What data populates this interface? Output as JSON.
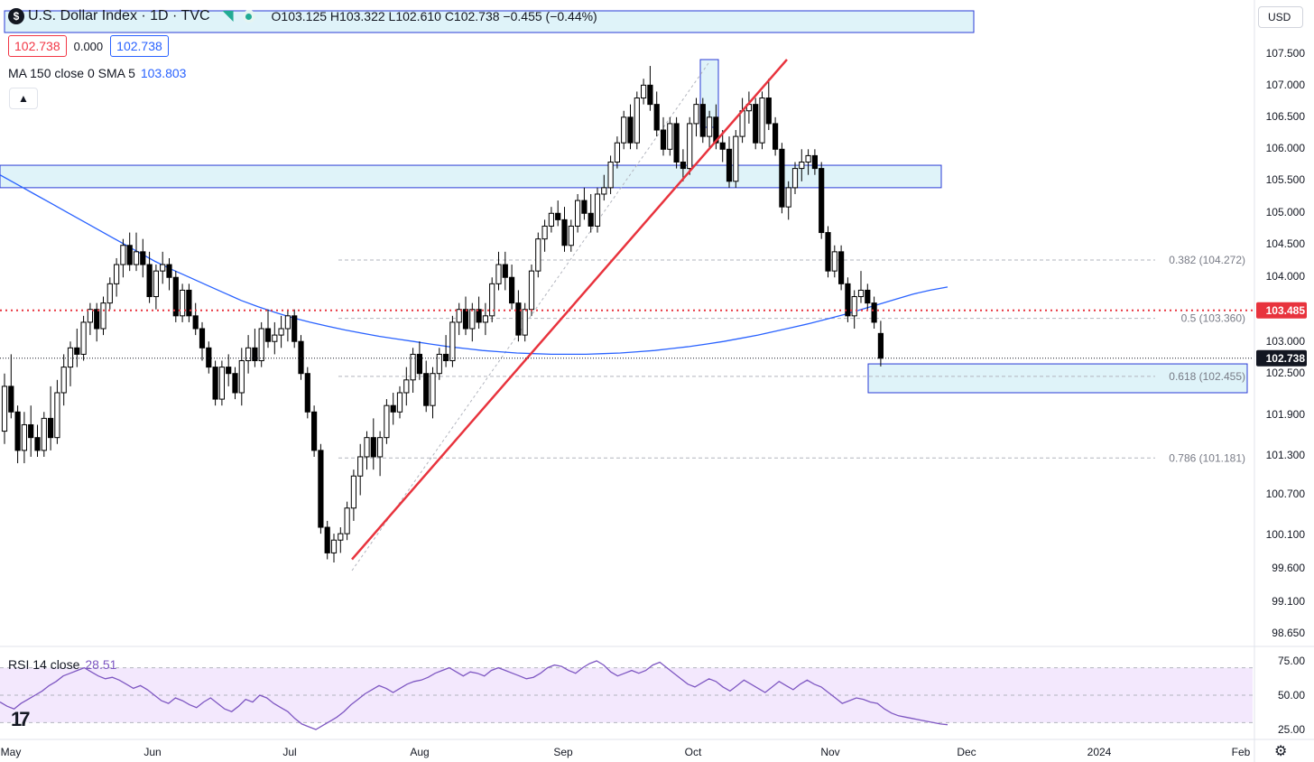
{
  "header": {
    "symbol_icon": "dollar-sign-icon",
    "title": "U.S. Dollar Index · 1D · TVC",
    "ohlc": "O103.125  H103.322  L102.610  C102.738  −0.455 (−0.44%)",
    "sell_price": "102.738",
    "spread": "0.000",
    "buy_price": "102.738",
    "ma_label": "MA 150 close 0 SMA 5",
    "ma_value": "103.803",
    "currency": "USD"
  },
  "rsi": {
    "label": "RSI 14 close",
    "value": "28.51"
  },
  "colors": {
    "up": "#ffffff",
    "down": "#000000",
    "trendline": "#e8333d",
    "ma": "#2962ff",
    "rsi": "#7e57c2",
    "zone": "#dff3f9",
    "zone_border": "#2a3bd6",
    "current_price_line": "#e8333d"
  },
  "chart_data": [
    {
      "type": "candlestick",
      "y_axis_ticks": [
        "107.500",
        "107.000",
        "106.500",
        "106.000",
        "105.500",
        "105.000",
        "104.500",
        "104.000",
        "103.000",
        "102.500",
        "101.900",
        "101.300",
        "100.700",
        "100.100",
        "99.600",
        "99.100",
        "98.650"
      ],
      "x_axis_ticks": [
        "May",
        "Jun",
        "Jul",
        "Aug",
        "Sep",
        "Oct",
        "Nov",
        "Dec",
        "2024",
        "Feb"
      ],
      "ylim": [
        98.5,
        107.8
      ],
      "last_price": "102.738",
      "marked_price": "103.485",
      "fib_levels": [
        {
          "label": "0.382 (104.272)",
          "value": 104.272
        },
        {
          "label": "0.5 (103.360)",
          "value": 103.36
        },
        {
          "label": "0.618 (102.455)",
          "value": 102.455
        },
        {
          "label": "0.786 (101.181)",
          "value": 101.181
        }
      ],
      "zones": [
        {
          "from": 105.4,
          "to": 105.75,
          "start": "May",
          "end": "Nov"
        },
        {
          "from": 102.2,
          "to": 102.65,
          "start": "Nov",
          "end": "Dec"
        }
      ],
      "trendline": {
        "start": {
          "date": "Jul 13",
          "value": 99.6
        },
        "end": {
          "date": "Oct 10",
          "value": 107.4
        }
      },
      "candles": [
        {
          "o": 101.6,
          "h": 102.5,
          "l": 101.4,
          "c": 102.3
        },
        {
          "o": 102.3,
          "h": 102.8,
          "l": 101.8,
          "c": 101.9
        },
        {
          "o": 101.9,
          "h": 102.0,
          "l": 101.1,
          "c": 101.3
        },
        {
          "o": 101.3,
          "h": 101.9,
          "l": 101.1,
          "c": 101.7
        },
        {
          "o": 101.7,
          "h": 102.0,
          "l": 101.2,
          "c": 101.5
        },
        {
          "o": 101.5,
          "h": 101.7,
          "l": 101.2,
          "c": 101.3
        },
        {
          "o": 101.3,
          "h": 101.9,
          "l": 101.2,
          "c": 101.8
        },
        {
          "o": 101.8,
          "h": 102.3,
          "l": 101.3,
          "c": 101.5
        },
        {
          "o": 101.5,
          "h": 102.4,
          "l": 101.4,
          "c": 102.2
        },
        {
          "o": 102.2,
          "h": 102.8,
          "l": 102.0,
          "c": 102.6
        },
        {
          "o": 102.6,
          "h": 103.0,
          "l": 102.3,
          "c": 102.9
        },
        {
          "o": 102.9,
          "h": 103.2,
          "l": 102.6,
          "c": 102.8
        },
        {
          "o": 102.8,
          "h": 103.4,
          "l": 102.7,
          "c": 103.3
        },
        {
          "o": 103.3,
          "h": 103.6,
          "l": 103.1,
          "c": 103.5
        },
        {
          "o": 103.5,
          "h": 103.6,
          "l": 103.0,
          "c": 103.2
        },
        {
          "o": 103.2,
          "h": 103.7,
          "l": 103.1,
          "c": 103.6
        },
        {
          "o": 103.6,
          "h": 104.0,
          "l": 103.5,
          "c": 103.9
        },
        {
          "o": 103.9,
          "h": 104.3,
          "l": 103.7,
          "c": 104.2
        },
        {
          "o": 104.2,
          "h": 104.6,
          "l": 104.0,
          "c": 104.5
        },
        {
          "o": 104.5,
          "h": 104.7,
          "l": 104.1,
          "c": 104.2
        },
        {
          "o": 104.2,
          "h": 104.7,
          "l": 104.1,
          "c": 104.4
        },
        {
          "o": 104.4,
          "h": 104.6,
          "l": 104.0,
          "c": 104.2
        },
        {
          "o": 104.2,
          "h": 104.4,
          "l": 103.6,
          "c": 103.7
        },
        {
          "o": 103.7,
          "h": 104.2,
          "l": 103.5,
          "c": 104.1
        },
        {
          "o": 104.1,
          "h": 104.4,
          "l": 103.9,
          "c": 104.2
        },
        {
          "o": 104.2,
          "h": 104.3,
          "l": 103.8,
          "c": 104.0
        },
        {
          "o": 104.0,
          "h": 104.1,
          "l": 103.3,
          "c": 103.4
        },
        {
          "o": 103.4,
          "h": 103.9,
          "l": 103.3,
          "c": 103.8
        },
        {
          "o": 103.8,
          "h": 103.9,
          "l": 103.3,
          "c": 103.4
        },
        {
          "o": 103.4,
          "h": 103.6,
          "l": 103.1,
          "c": 103.2
        },
        {
          "o": 103.2,
          "h": 103.3,
          "l": 102.7,
          "c": 102.9
        },
        {
          "o": 102.9,
          "h": 103.0,
          "l": 102.5,
          "c": 102.6
        },
        {
          "o": 102.6,
          "h": 102.7,
          "l": 102.0,
          "c": 102.1
        },
        {
          "o": 102.1,
          "h": 102.7,
          "l": 102.0,
          "c": 102.6
        },
        {
          "o": 102.6,
          "h": 102.8,
          "l": 102.3,
          "c": 102.5
        },
        {
          "o": 102.5,
          "h": 102.6,
          "l": 102.1,
          "c": 102.2
        },
        {
          "o": 102.2,
          "h": 102.9,
          "l": 102.0,
          "c": 102.7
        },
        {
          "o": 102.7,
          "h": 103.1,
          "l": 102.5,
          "c": 102.9
        },
        {
          "o": 102.9,
          "h": 103.2,
          "l": 102.6,
          "c": 102.7
        },
        {
          "o": 102.7,
          "h": 103.3,
          "l": 102.6,
          "c": 103.2
        },
        {
          "o": 103.2,
          "h": 103.5,
          "l": 102.9,
          "c": 103.0
        },
        {
          "o": 103.0,
          "h": 103.3,
          "l": 102.8,
          "c": 103.1
        },
        {
          "o": 103.1,
          "h": 103.4,
          "l": 102.9,
          "c": 103.2
        },
        {
          "o": 103.2,
          "h": 103.5,
          "l": 103.0,
          "c": 103.4
        },
        {
          "o": 103.4,
          "h": 103.5,
          "l": 102.9,
          "c": 103.0
        },
        {
          "o": 103.0,
          "h": 103.1,
          "l": 102.4,
          "c": 102.5
        },
        {
          "o": 102.5,
          "h": 102.6,
          "l": 101.8,
          "c": 101.9
        },
        {
          "o": 101.9,
          "h": 102.0,
          "l": 101.2,
          "c": 101.3
        },
        {
          "o": 101.3,
          "h": 101.4,
          "l": 100.0,
          "c": 100.1
        },
        {
          "o": 100.1,
          "h": 100.2,
          "l": 99.6,
          "c": 99.7
        },
        {
          "o": 99.7,
          "h": 100.0,
          "l": 99.55,
          "c": 99.9
        },
        {
          "o": 99.9,
          "h": 100.1,
          "l": 99.7,
          "c": 100.0
        },
        {
          "o": 100.0,
          "h": 100.5,
          "l": 99.9,
          "c": 100.4
        },
        {
          "o": 100.4,
          "h": 101.0,
          "l": 100.2,
          "c": 100.9
        },
        {
          "o": 100.9,
          "h": 101.4,
          "l": 100.6,
          "c": 101.2
        },
        {
          "o": 101.2,
          "h": 101.6,
          "l": 101.0,
          "c": 101.5
        },
        {
          "o": 101.5,
          "h": 101.8,
          "l": 101.0,
          "c": 101.2
        },
        {
          "o": 101.2,
          "h": 101.6,
          "l": 100.9,
          "c": 101.5
        },
        {
          "o": 101.5,
          "h": 102.1,
          "l": 101.4,
          "c": 102.0
        },
        {
          "o": 102.0,
          "h": 102.2,
          "l": 101.7,
          "c": 101.9
        },
        {
          "o": 101.9,
          "h": 102.3,
          "l": 101.8,
          "c": 102.2
        },
        {
          "o": 102.2,
          "h": 102.6,
          "l": 102.0,
          "c": 102.4
        },
        {
          "o": 102.4,
          "h": 102.9,
          "l": 102.2,
          "c": 102.8
        },
        {
          "o": 102.8,
          "h": 103.0,
          "l": 102.4,
          "c": 102.5
        },
        {
          "o": 102.5,
          "h": 102.7,
          "l": 101.9,
          "c": 102.0
        },
        {
          "o": 102.0,
          "h": 102.6,
          "l": 101.8,
          "c": 102.5
        },
        {
          "o": 102.5,
          "h": 102.9,
          "l": 102.4,
          "c": 102.8
        },
        {
          "o": 102.8,
          "h": 103.1,
          "l": 102.6,
          "c": 102.7
        },
        {
          "o": 102.7,
          "h": 103.4,
          "l": 102.6,
          "c": 103.3
        },
        {
          "o": 103.3,
          "h": 103.6,
          "l": 103.1,
          "c": 103.5
        },
        {
          "o": 103.5,
          "h": 103.7,
          "l": 103.1,
          "c": 103.2
        },
        {
          "o": 103.2,
          "h": 103.6,
          "l": 103.0,
          "c": 103.5
        },
        {
          "o": 103.5,
          "h": 103.7,
          "l": 103.2,
          "c": 103.3
        },
        {
          "o": 103.3,
          "h": 103.6,
          "l": 103.1,
          "c": 103.4
        },
        {
          "o": 103.4,
          "h": 104.0,
          "l": 103.3,
          "c": 103.9
        },
        {
          "o": 103.9,
          "h": 104.4,
          "l": 103.8,
          "c": 104.2
        },
        {
          "o": 104.2,
          "h": 104.4,
          "l": 103.8,
          "c": 104.0
        },
        {
          "o": 104.0,
          "h": 104.2,
          "l": 103.5,
          "c": 103.6
        },
        {
          "o": 103.6,
          "h": 103.8,
          "l": 103.0,
          "c": 103.1
        },
        {
          "o": 103.1,
          "h": 103.6,
          "l": 103.0,
          "c": 103.5
        },
        {
          "o": 103.5,
          "h": 104.2,
          "l": 103.4,
          "c": 104.1
        },
        {
          "o": 104.1,
          "h": 104.7,
          "l": 104.0,
          "c": 104.6
        },
        {
          "o": 104.6,
          "h": 104.9,
          "l": 104.4,
          "c": 104.8
        },
        {
          "o": 104.8,
          "h": 105.1,
          "l": 104.7,
          "c": 105.0
        },
        {
          "o": 105.0,
          "h": 105.2,
          "l": 104.8,
          "c": 104.9
        },
        {
          "o": 104.9,
          "h": 105.1,
          "l": 104.4,
          "c": 104.5
        },
        {
          "o": 104.5,
          "h": 104.9,
          "l": 104.4,
          "c": 104.8
        },
        {
          "o": 104.8,
          "h": 105.3,
          "l": 104.7,
          "c": 105.2
        },
        {
          "o": 105.2,
          "h": 105.4,
          "l": 104.9,
          "c": 105.0
        },
        {
          "o": 105.0,
          "h": 105.3,
          "l": 104.7,
          "c": 104.8
        },
        {
          "o": 104.8,
          "h": 105.4,
          "l": 104.7,
          "c": 105.3
        },
        {
          "o": 105.3,
          "h": 105.6,
          "l": 105.2,
          "c": 105.4
        },
        {
          "o": 105.4,
          "h": 105.9,
          "l": 105.3,
          "c": 105.8
        },
        {
          "o": 105.8,
          "h": 106.2,
          "l": 105.7,
          "c": 106.1
        },
        {
          "o": 106.1,
          "h": 106.6,
          "l": 106.0,
          "c": 106.5
        },
        {
          "o": 106.5,
          "h": 106.7,
          "l": 106.0,
          "c": 106.1
        },
        {
          "o": 106.1,
          "h": 106.9,
          "l": 106.0,
          "c": 106.8
        },
        {
          "o": 106.8,
          "h": 107.1,
          "l": 106.7,
          "c": 107.0
        },
        {
          "o": 107.0,
          "h": 107.3,
          "l": 106.6,
          "c": 106.7
        },
        {
          "o": 106.7,
          "h": 106.9,
          "l": 106.2,
          "c": 106.3
        },
        {
          "o": 106.3,
          "h": 106.5,
          "l": 105.9,
          "c": 106.0
        },
        {
          "o": 106.0,
          "h": 106.5,
          "l": 105.9,
          "c": 106.4
        },
        {
          "o": 106.4,
          "h": 106.5,
          "l": 105.7,
          "c": 105.8
        },
        {
          "o": 105.8,
          "h": 106.0,
          "l": 105.5,
          "c": 105.7
        },
        {
          "o": 105.7,
          "h": 106.5,
          "l": 105.6,
          "c": 106.4
        },
        {
          "o": 106.4,
          "h": 106.8,
          "l": 106.2,
          "c": 106.7
        },
        {
          "o": 106.7,
          "h": 106.8,
          "l": 106.1,
          "c": 106.2
        },
        {
          "o": 106.2,
          "h": 106.6,
          "l": 106.0,
          "c": 106.5
        },
        {
          "o": 106.5,
          "h": 106.7,
          "l": 106.0,
          "c": 106.1
        },
        {
          "o": 106.1,
          "h": 106.3,
          "l": 105.8,
          "c": 106.0
        },
        {
          "o": 106.0,
          "h": 106.2,
          "l": 105.4,
          "c": 105.5
        },
        {
          "o": 105.5,
          "h": 106.3,
          "l": 105.4,
          "c": 106.2
        },
        {
          "o": 106.2,
          "h": 106.8,
          "l": 106.1,
          "c": 106.6
        },
        {
          "o": 106.6,
          "h": 106.9,
          "l": 106.4,
          "c": 106.7
        },
        {
          "o": 106.7,
          "h": 106.8,
          "l": 106.0,
          "c": 106.1
        },
        {
          "o": 106.1,
          "h": 106.9,
          "l": 106.0,
          "c": 106.8
        },
        {
          "o": 106.8,
          "h": 107.1,
          "l": 106.3,
          "c": 106.4
        },
        {
          "o": 106.4,
          "h": 106.5,
          "l": 105.9,
          "c": 106.0
        },
        {
          "o": 106.0,
          "h": 106.1,
          "l": 105.0,
          "c": 105.1
        },
        {
          "o": 105.1,
          "h": 105.5,
          "l": 104.9,
          "c": 105.4
        },
        {
          "o": 105.4,
          "h": 105.8,
          "l": 105.3,
          "c": 105.7
        },
        {
          "o": 105.7,
          "h": 106.0,
          "l": 105.5,
          "c": 105.8
        },
        {
          "o": 105.8,
          "h": 106.0,
          "l": 105.6,
          "c": 105.9
        },
        {
          "o": 105.9,
          "h": 106.0,
          "l": 105.6,
          "c": 105.7
        },
        {
          "o": 105.7,
          "h": 105.8,
          "l": 104.6,
          "c": 104.7
        },
        {
          "o": 104.7,
          "h": 104.8,
          "l": 104.0,
          "c": 104.1
        },
        {
          "o": 104.1,
          "h": 104.5,
          "l": 104.0,
          "c": 104.4
        },
        {
          "o": 104.4,
          "h": 104.5,
          "l": 103.8,
          "c": 103.9
        },
        {
          "o": 103.9,
          "h": 104.0,
          "l": 103.3,
          "c": 103.4
        },
        {
          "o": 103.4,
          "h": 103.8,
          "l": 103.2,
          "c": 103.7
        },
        {
          "o": 103.7,
          "h": 104.1,
          "l": 103.6,
          "c": 103.8
        },
        {
          "o": 103.8,
          "h": 103.9,
          "l": 103.5,
          "c": 103.6
        },
        {
          "o": 103.6,
          "h": 103.7,
          "l": 103.2,
          "c": 103.3
        },
        {
          "o": 103.125,
          "h": 103.322,
          "l": 102.61,
          "c": 102.738
        }
      ],
      "ma_series": [
        105.6,
        105.45,
        105.3,
        105.15,
        105.0,
        104.85,
        104.7,
        104.55,
        104.4,
        104.25,
        104.12,
        104.0,
        103.88,
        103.76,
        103.64,
        103.54,
        103.45,
        103.37,
        103.3,
        103.24,
        103.18,
        103.13,
        103.08,
        103.04,
        103.0,
        102.96,
        102.92,
        102.89,
        102.86,
        102.84,
        102.82,
        102.81,
        102.8,
        102.8,
        102.8,
        102.81,
        102.82,
        102.84,
        102.86,
        102.89,
        102.92,
        102.96,
        103.0,
        103.05,
        103.1,
        103.16,
        103.22,
        103.28,
        103.35,
        103.42,
        103.5,
        103.58,
        103.66,
        103.74,
        103.8,
        103.85
      ]
    },
    {
      "type": "line",
      "title": "RSI 14 close",
      "y_axis_ticks": [
        "75.00",
        "50.00",
        "25.00"
      ],
      "ylim": [
        20,
        80
      ],
      "band": [
        30,
        70
      ],
      "values": [
        45,
        42,
        40,
        44,
        47,
        50,
        53,
        57,
        60,
        64,
        66,
        68,
        70,
        67,
        64,
        62,
        63,
        61,
        58,
        55,
        57,
        54,
        50,
        46,
        44,
        48,
        46,
        43,
        41,
        45,
        48,
        44,
        40,
        38,
        42,
        47,
        45,
        50,
        48,
        44,
        41,
        38,
        33,
        29,
        27,
        25,
        28,
        31,
        34,
        38,
        43,
        47,
        51,
        54,
        57,
        55,
        52,
        55,
        58,
        60,
        61,
        63,
        66,
        68,
        70,
        67,
        64,
        67,
        66,
        64,
        68,
        70,
        68,
        66,
        64,
        62,
        63,
        66,
        70,
        72,
        71,
        68,
        66,
        70,
        73,
        75,
        72,
        67,
        64,
        66,
        68,
        66,
        68,
        72,
        74,
        70,
        66,
        62,
        58,
        56,
        59,
        62,
        60,
        56,
        53,
        57,
        61,
        58,
        55,
        52,
        56,
        60,
        57,
        54,
        58,
        61,
        58,
        56,
        52,
        48,
        44,
        46,
        48,
        47,
        45,
        44,
        40,
        37,
        35,
        34,
        33,
        32,
        31,
        30,
        29,
        28.5
      ]
    }
  ]
}
